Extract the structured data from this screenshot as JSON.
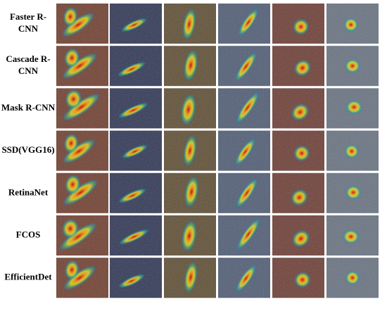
{
  "figure": {
    "rows": [
      {
        "label": [
          "Faster R-",
          "CNN"
        ]
      },
      {
        "label": [
          "Cascade R-",
          "CNN"
        ]
      },
      {
        "label": [
          "Mask R-CNN"
        ]
      },
      {
        "label": [
          "SSD(VGG16)"
        ]
      },
      {
        "label": [
          "RetinaNet"
        ]
      },
      {
        "label": [
          "FCOS"
        ]
      },
      {
        "label": [
          "EfficientDet"
        ]
      }
    ]
  }
}
